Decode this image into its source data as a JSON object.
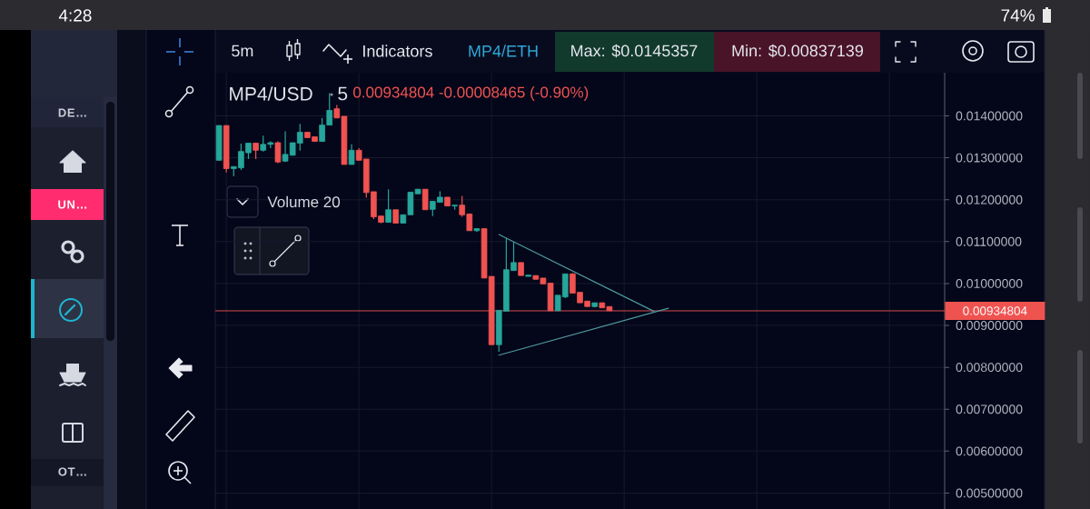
{
  "chart_data": {
    "type": "candlestick",
    "title": "MP4/USD",
    "categories": [
      null,
      null,
      null,
      null,
      null,
      null,
      null,
      null,
      null,
      null,
      null,
      null,
      null,
      null,
      null,
      null,
      null,
      null,
      null,
      null,
      null,
      null,
      null,
      null,
      null,
      null,
      null,
      null,
      null,
      null,
      null,
      null,
      null,
      null,
      null,
      null,
      null,
      null,
      null,
      null,
      null,
      null,
      null,
      null,
      null,
      null,
      null,
      null,
      null,
      null,
      null,
      null,
      null,
      null,
      null,
      null,
      null,
      null,
      null,
      null,
      null,
      null,
      null,
      null,
      null,
      null,
      null,
      null,
      null,
      null,
      null,
      null,
      null,
      null,
      null,
      null,
      null,
      null,
      null,
      null,
      null,
      null,
      null,
      null,
      null,
      null,
      null,
      null,
      null,
      null,
      null,
      null,
      null,
      null,
      null,
      null,
      null,
      null,
      null
    ],
    "ohlc": [
      [
        0.01294,
        0.01377,
        0.01294,
        0.01377
      ],
      [
        0.01377,
        0.01377,
        0.01265,
        0.01274
      ],
      [
        0.01274,
        0.01279,
        0.01256,
        0.01279
      ],
      [
        0.01276,
        0.01334,
        0.01271,
        0.01315
      ],
      [
        0.01312,
        0.01335,
        0.01297,
        0.01335
      ],
      [
        0.01335,
        0.01335,
        0.01297,
        0.01318
      ],
      [
        0.01318,
        0.01353,
        0.01315,
        0.01332
      ],
      [
        0.01332,
        0.01339,
        0.01323,
        0.01336
      ],
      [
        0.01336,
        0.01339,
        0.01287,
        0.0129
      ],
      [
        0.01292,
        0.01363,
        0.0129,
        0.01308
      ],
      [
        0.01306,
        0.01336,
        0.01306,
        0.01336
      ],
      [
        0.01335,
        0.01381,
        0.01317,
        0.01361
      ],
      [
        0.01361,
        0.01361,
        0.01348,
        0.01348
      ],
      [
        0.0135,
        0.0135,
        0.01339,
        0.01339
      ],
      [
        0.01339,
        0.01395,
        0.01339,
        0.01378
      ],
      [
        0.01378,
        0.01454,
        0.01378,
        0.01413
      ],
      [
        0.01417,
        0.01426,
        0.01395,
        0.01395
      ],
      [
        0.01399,
        0.01399,
        0.01284,
        0.01284
      ],
      [
        0.01284,
        0.01332,
        0.01284,
        0.01318
      ],
      [
        0.01318,
        0.01323,
        0.01294,
        0.01294
      ],
      [
        0.01297,
        0.01297,
        0.01205,
        0.01217
      ],
      [
        0.01219,
        0.01219,
        0.01154,
        0.01159
      ],
      [
        0.01161,
        0.01161,
        0.01144,
        0.01146
      ],
      [
        0.01146,
        0.01225,
        0.01146,
        0.01176
      ],
      [
        0.01176,
        0.01176,
        0.01144,
        0.01144
      ],
      [
        0.01144,
        0.01164,
        0.01144,
        0.01164
      ],
      [
        0.01164,
        0.01218,
        0.01164,
        0.01218
      ],
      [
        0.01214,
        0.01225,
        0.01214,
        0.01225
      ],
      [
        0.01225,
        0.01225,
        0.01176,
        0.01176
      ],
      [
        0.01177,
        0.01196,
        0.01161,
        0.01196
      ],
      [
        0.01194,
        0.0122,
        0.01194,
        0.01206
      ],
      [
        0.01206,
        0.01206,
        0.01185,
        0.01185
      ],
      [
        0.01185,
        0.01187,
        0.01176,
        0.01187
      ],
      [
        0.01187,
        0.01209,
        0.01159,
        0.01164
      ],
      [
        0.01166,
        0.01166,
        0.01126,
        0.01126
      ],
      [
        0.01126,
        0.01131,
        0.01123,
        0.01131
      ],
      [
        0.01131,
        0.01131,
        0.01013,
        0.01013
      ],
      [
        0.01017,
        0.01017,
        0.00854,
        0.00854
      ],
      [
        0.00854,
        0.00936,
        0.00837,
        0.00936
      ],
      [
        0.00934,
        0.01109,
        0.00934,
        0.01033
      ],
      [
        0.01031,
        0.01099,
        0.01031,
        0.0105
      ],
      [
        0.0105,
        0.0105,
        0.01019,
        0.01019
      ],
      [
        0.01017,
        0.0102,
        0.01017,
        0.0102
      ],
      [
        0.01019,
        0.01019,
        0.0101,
        0.0101
      ],
      [
        0.01013,
        0.01013,
        0.00999,
        0.00999
      ],
      [
        0.01001,
        0.01001,
        0.00935,
        0.00935
      ],
      [
        0.00935,
        0.00972,
        0.00935,
        0.00972
      ],
      [
        0.00968,
        0.01023,
        0.00965,
        0.01023
      ],
      [
        0.01023,
        0.01025,
        0.00977,
        0.00977
      ],
      [
        0.00979,
        0.00979,
        0.00954,
        0.00954
      ],
      [
        0.00958,
        0.00958,
        0.00945,
        0.00945
      ],
      [
        0.00945,
        0.00954,
        0.00943,
        0.00954
      ],
      [
        0.00954,
        0.00954,
        0.00942,
        0.00942
      ],
      [
        0.00945,
        0.00945,
        0.00935,
        0.00935
      ],
      null,
      null,
      null,
      null,
      null,
      null,
      null,
      null,
      null,
      null,
      null,
      null,
      null,
      null,
      null,
      null,
      null,
      null,
      null,
      null,
      null,
      null,
      null,
      null,
      null,
      null,
      null,
      null,
      null,
      null,
      null,
      null,
      null,
      null,
      null,
      null,
      null,
      null,
      null,
      null,
      null,
      null,
      null,
      null,
      null
    ],
    "colors": [
      "#26a69a",
      "#ef5350",
      "#26a69a",
      "#26a69a",
      "#26a69a",
      "#ef5350",
      "#26a69a",
      "#26a69a",
      "#ef5350",
      "#26a69a",
      "#26a69a",
      "#26a69a",
      "#ef5350",
      "#ef5350",
      "#26a69a",
      "#26a69a",
      "#ef5350",
      "#ef5350",
      "#26a69a",
      "#ef5350",
      "#ef5350",
      "#ef5350",
      "#ef5350",
      "#26a69a",
      "#ef5350",
      "#26a69a",
      "#26a69a",
      "#26a69a",
      "#ef5350",
      "#26a69a",
      "#26a69a",
      "#ef5350",
      "#26a69a",
      "#ef5350",
      "#ef5350",
      "#26a69a",
      "#ef5350",
      "#ef5350",
      "#26a69a",
      "#26a69a",
      "#26a69a",
      "#ef5350",
      "#26a69a",
      "#ef5350",
      "#ef5350",
      "#ef5350",
      "#26a69a",
      "#26a69a",
      "#ef5350",
      "#ef5350",
      "#ef5350",
      "#26a69a",
      "#ef5350",
      "#ef5350",
      null,
      null,
      null,
      null,
      null,
      null,
      null,
      null,
      null,
      null,
      null,
      null,
      null,
      null,
      null,
      null,
      null,
      null,
      null,
      null,
      null,
      null,
      null,
      null,
      null,
      null,
      null,
      null,
      null,
      null,
      null,
      null,
      null,
      null,
      null,
      null,
      null,
      null,
      null,
      null,
      null,
      null,
      null,
      null,
      null
    ],
    "series": [
      {
        "type": "line",
        "color": "#4d9a9e",
        "values": [
          null,
          null,
          null,
          null,
          null,
          null,
          null,
          null,
          null,
          null,
          null,
          null,
          null,
          null,
          null,
          null,
          null,
          null,
          null,
          null,
          null,
          null,
          null,
          null,
          null,
          null,
          null,
          null,
          null,
          null,
          null,
          null,
          null,
          null,
          null,
          null,
          null,
          null,
          0.01117,
          null,
          null,
          null,
          null,
          null,
          null,
          null,
          null,
          null,
          null,
          null,
          null,
          null,
          null,
          null,
          null,
          null,
          null,
          null,
          null,
          0.00934,
          null,
          null,
          null,
          null,
          null,
          null,
          null,
          null,
          null,
          null,
          null,
          null,
          null,
          null,
          null,
          null,
          null,
          null,
          null,
          null,
          null,
          null,
          null,
          null,
          null,
          null,
          null,
          null,
          null,
          null,
          null,
          null,
          null,
          null,
          null,
          null,
          null,
          null,
          null
        ]
      },
      {
        "type": "line",
        "color": "#4d9a9e",
        "values": [
          null,
          null,
          null,
          null,
          null,
          null,
          null,
          null,
          null,
          null,
          null,
          null,
          null,
          null,
          null,
          null,
          null,
          null,
          null,
          null,
          null,
          null,
          null,
          null,
          null,
          null,
          null,
          null,
          null,
          null,
          null,
          null,
          null,
          null,
          null,
          null,
          null,
          null,
          0.00829,
          null,
          null,
          null,
          null,
          null,
          null,
          null,
          null,
          null,
          null,
          null,
          null,
          null,
          null,
          null,
          null,
          null,
          null,
          null,
          null,
          null,
          null,
          0.00941,
          null,
          null,
          null,
          null,
          null,
          null,
          null,
          null,
          null,
          null,
          null,
          null,
          null,
          null,
          null,
          null,
          null,
          null,
          null,
          null,
          null,
          null,
          null,
          null,
          null,
          null,
          null,
          null,
          null,
          null,
          null,
          null,
          null,
          null,
          null,
          null,
          null
        ]
      }
    ],
    "ylim": [
      0.00462,
      0.01503
    ],
    "yticks": [
      {
        "value": 0.005,
        "label": "0.00500000"
      },
      {
        "value": 0.006,
        "label": "0.00600000"
      },
      {
        "value": 0.007,
        "label": "0.00700000"
      },
      {
        "value": 0.008,
        "label": "0.00800000"
      },
      {
        "value": 0.009,
        "label": "0.00900000"
      },
      {
        "value": 0.01,
        "label": "0.01000000"
      },
      {
        "value": 0.011,
        "label": "0.01100000"
      },
      {
        "value": 0.012,
        "label": "0.01200000"
      },
      {
        "value": 0.013,
        "label": "0.01300000"
      },
      {
        "value": 0.014,
        "label": "0.01400000"
      }
    ],
    "grid": true,
    "ref_lines": [
      {
        "axis": "y",
        "value": 0.00934804,
        "label": "0.00934804",
        "color": "#ef5350"
      }
    ],
    "annotations": [
      "4:28",
      "74%",
      "DE…",
      "UN…",
      "OT…",
      "5m",
      "Indicators",
      "MP4/ETH",
      "Max: $0.0145357",
      "Min: $0.00837139",
      "5",
      "0.00934804 -0.00008465 (-0.90%)",
      "Volume 20"
    ]
  }
}
